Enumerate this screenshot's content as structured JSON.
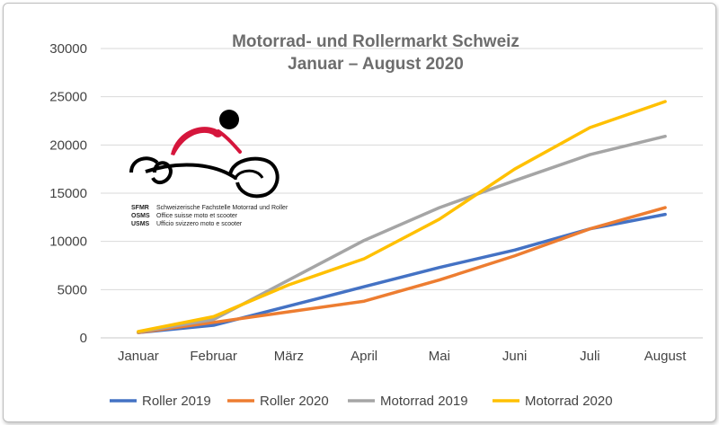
{
  "chart_data": {
    "type": "line",
    "title": "Motorrad- und Rollermarkt Schweiz",
    "subtitle": "Januar – August 2020",
    "categories": [
      "Januar",
      "Februar",
      "März",
      "April",
      "Mai",
      "Juni",
      "Juli",
      "August"
    ],
    "ylim": [
      0,
      30000
    ],
    "yticks": [
      0,
      5000,
      10000,
      15000,
      20000,
      25000,
      30000
    ],
    "grid": true,
    "legend_position": "bottom",
    "series": [
      {
        "name": "Roller 2019",
        "color": "#4472c4",
        "values": [
          550,
          1300,
          3300,
          5300,
          7300,
          9100,
          11300,
          12800
        ]
      },
      {
        "name": "Roller 2020",
        "color": "#ed7d31",
        "values": [
          550,
          1600,
          2700,
          3800,
          6000,
          8500,
          11300,
          13500
        ]
      },
      {
        "name": "Motorrad 2019",
        "color": "#a5a5a5",
        "values": [
          600,
          1900,
          6000,
          10100,
          13500,
          16300,
          19000,
          20900
        ]
      },
      {
        "name": "Motorrad 2020",
        "color": "#ffc000",
        "values": [
          650,
          2200,
          5500,
          8200,
          12300,
          17500,
          21800,
          24500
        ]
      }
    ]
  },
  "logo": {
    "lines": [
      {
        "abbr": "SFMR",
        "text": "Schweizerische Fachstelle Motorrad und Roller"
      },
      {
        "abbr": "OSMS",
        "text": "Office suisse moto et scooter"
      },
      {
        "abbr": "USMS",
        "text": "Ufficio svizzero moto e scooter"
      }
    ]
  }
}
